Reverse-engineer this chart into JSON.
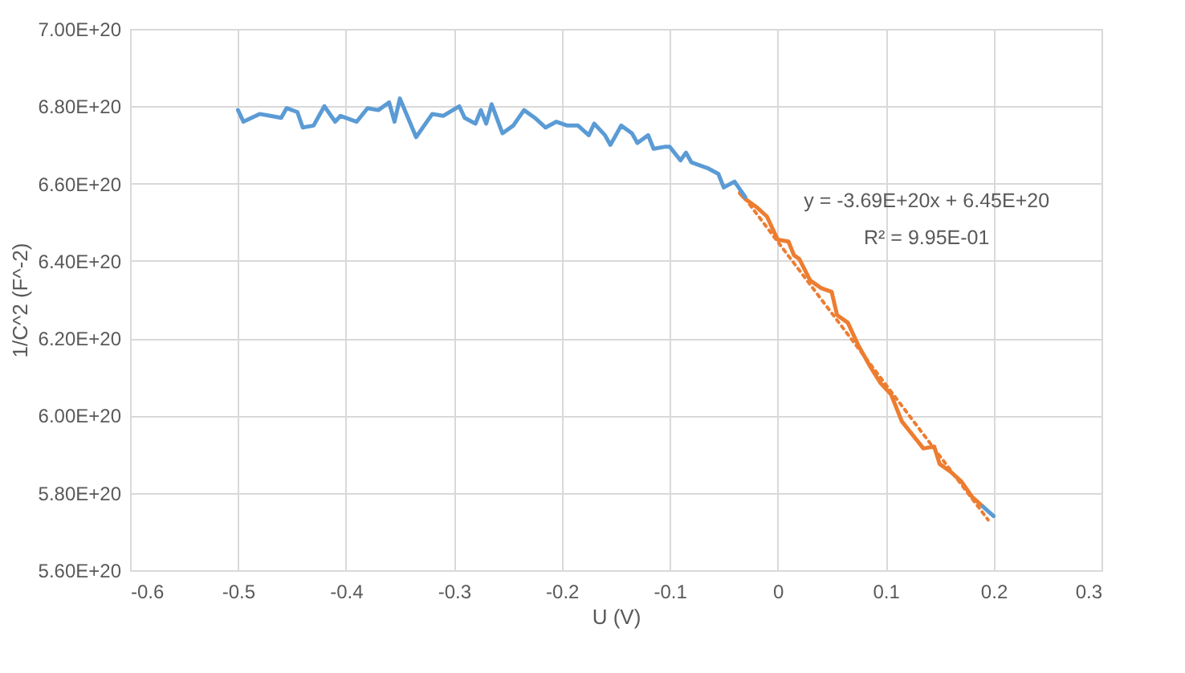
{
  "chart_data": {
    "type": "line",
    "xlabel": "U (V)",
    "ylabel": "1/C^2 (F^-2)",
    "xlim": [
      -0.6,
      0.3
    ],
    "xticks": [
      -0.6,
      -0.5,
      -0.4,
      -0.3,
      -0.2,
      -0.1,
      0,
      0.1,
      0.2,
      0.3
    ],
    "ylim": [
      5.6e+20,
      7e+20
    ],
    "yticks": [
      {
        "value": 5.6e+20,
        "label": "5.60E+20"
      },
      {
        "value": 5.8e+20,
        "label": "5.80E+20"
      },
      {
        "value": 6e+20,
        "label": "6.00E+20"
      },
      {
        "value": 6.2e+20,
        "label": "6.20E+20"
      },
      {
        "value": 6.4e+20,
        "label": "6.40E+20"
      },
      {
        "value": 6.6e+20,
        "label": "6.60E+20"
      },
      {
        "value": 6.8e+20,
        "label": "6.80E+20"
      },
      {
        "value": 7e+20,
        "label": "7.00E+20"
      }
    ],
    "grid": true,
    "legend": false,
    "series": [
      {
        "color": "#5b9bd5",
        "x": [
          -0.5,
          -0.495,
          -0.48,
          -0.47,
          -0.46,
          -0.455,
          -0.445,
          -0.44,
          -0.43,
          -0.42,
          -0.41,
          -0.405,
          -0.39,
          -0.38,
          -0.37,
          -0.36,
          -0.355,
          -0.35,
          -0.335,
          -0.32,
          -0.31,
          -0.295,
          -0.29,
          -0.28,
          -0.275,
          -0.27,
          -0.265,
          -0.255,
          -0.245,
          -0.235,
          -0.225,
          -0.215,
          -0.205,
          -0.195,
          -0.185,
          -0.175,
          -0.17,
          -0.16,
          -0.155,
          -0.145,
          -0.135,
          -0.13,
          -0.12,
          -0.115,
          -0.105,
          -0.1,
          -0.09,
          -0.085,
          -0.08,
          -0.065,
          -0.055,
          -0.05,
          -0.04,
          -0.03,
          0.0,
          0.19,
          0.2
        ],
        "values": [
          6.79e+20,
          6.76e+20,
          6.78e+20,
          6.775e+20,
          6.77e+20,
          6.795e+20,
          6.785e+20,
          6.745e+20,
          6.75e+20,
          6.8e+20,
          6.76e+20,
          6.775e+20,
          6.76e+20,
          6.795e+20,
          6.79e+20,
          6.81e+20,
          6.76e+20,
          6.82e+20,
          6.72e+20,
          6.78e+20,
          6.775e+20,
          6.8e+20,
          6.77e+20,
          6.755e+20,
          6.79e+20,
          6.755e+20,
          6.805e+20,
          6.73e+20,
          6.75e+20,
          6.79e+20,
          6.77e+20,
          6.745e+20,
          6.76e+20,
          6.75e+20,
          6.75e+20,
          6.725e+20,
          6.755e+20,
          6.725e+20,
          6.7e+20,
          6.75e+20,
          6.73e+20,
          6.705e+20,
          6.725e+20,
          6.69e+20,
          6.695e+20,
          6.695e+20,
          6.66e+20,
          6.68e+20,
          6.655e+20,
          6.64e+20,
          6.625e+20,
          6.59e+20,
          6.605e+20,
          6.565e+20,
          null,
          5.765e+20,
          5.74e+20
        ]
      },
      {
        "color": "#ed7d31",
        "x": [
          -0.035,
          -0.03,
          -0.02,
          -0.01,
          -0.005,
          0,
          0.01,
          0.015,
          0.02,
          0.03,
          0.04,
          0.05,
          0.055,
          0.065,
          0.075,
          0.085,
          0.095,
          0.105,
          0.115,
          0.125,
          0.135,
          0.145,
          0.15,
          0.16,
          0.17,
          0.18,
          0.19
        ],
        "values": [
          6.575e+20,
          6.56e+20,
          6.54e+20,
          6.515e+20,
          6.485e+20,
          6.455e+20,
          6.45e+20,
          6.415e+20,
          6.405e+20,
          6.35e+20,
          6.33e+20,
          6.32e+20,
          6.26e+20,
          6.24e+20,
          6.18e+20,
          6.13e+20,
          6.085e+20,
          6.055e+20,
          5.985e+20,
          5.95e+20,
          5.915e+20,
          5.92e+20,
          5.875e+20,
          5.855e+20,
          5.83e+20,
          5.79e+20,
          5.765e+20
        ]
      },
      {
        "type": "line",
        "line_style": "dotted",
        "color": "#ed7d31",
        "x": [
          -0.035,
          0.195
        ],
        "values": [
          6.579e+20,
          5.73e+20
        ]
      }
    ],
    "annotations": [
      "y = -3.69E+20x + 6.45E+20",
      "R² = 9.95E-01"
    ]
  }
}
